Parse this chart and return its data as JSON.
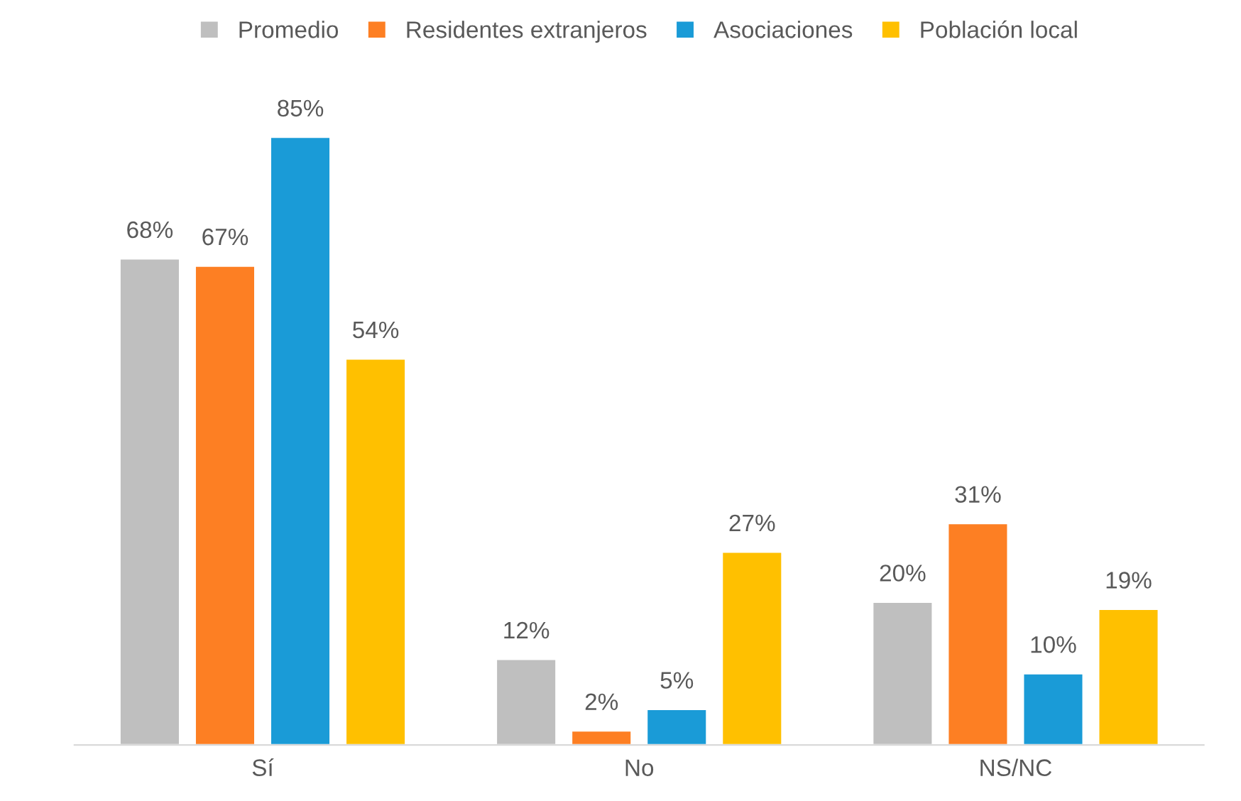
{
  "chart_data": {
    "type": "bar",
    "categories": [
      "Sí",
      "No",
      "NS/NC"
    ],
    "series": [
      {
        "name": "Promedio",
        "color": "#bfbfbf",
        "values": [
          68,
          12,
          20
        ],
        "value_labels": [
          "68%",
          "12%",
          "20%"
        ]
      },
      {
        "name": "Residentes extranjeros",
        "color": "#fd7f23",
        "values": [
          67,
          2,
          31
        ],
        "value_labels": [
          "67%",
          "2%",
          "31%"
        ]
      },
      {
        "name": "Asociaciones",
        "color": "#1a9bd7",
        "values": [
          85,
          5,
          10
        ],
        "value_labels": [
          "85%",
          "5%",
          "10%"
        ]
      },
      {
        "name": "Población local",
        "color": "#ffc000",
        "values": [
          54,
          27,
          19
        ],
        "value_labels": [
          "54%",
          "27%",
          "19%"
        ]
      }
    ],
    "legend": "top"
  }
}
